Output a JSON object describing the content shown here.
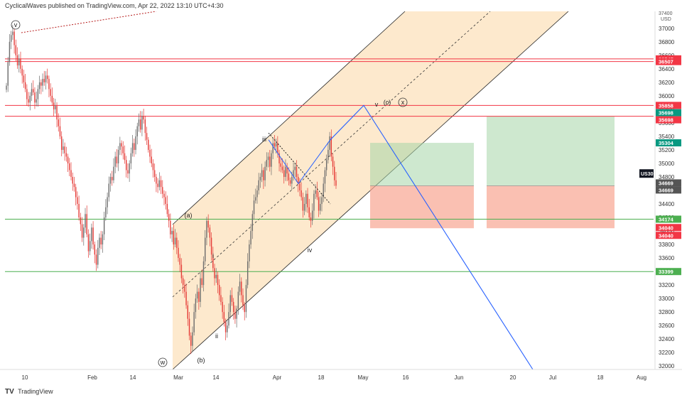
{
  "header": {
    "author": "CyclicalWaves",
    "published_text": "published on TradingView.com, Apr 22, 2022 13:10 UTC+4:30"
  },
  "footer": {
    "logo_text": "TV",
    "brand": "TradingView"
  },
  "chart_data": {
    "type": "candlestick",
    "symbol": "US30",
    "currency": "USD",
    "y_axis": {
      "range": [
        31950,
        37250
      ],
      "ticks": [
        32000,
        32200,
        32400,
        32600,
        32800,
        33000,
        33200,
        33400,
        33600,
        33800,
        34000,
        34200,
        34400,
        34600,
        34800,
        35000,
        35200,
        35400,
        35600,
        35800,
        36000,
        36200,
        36400,
        36600,
        36800,
        37000
      ],
      "top_partial_label": "37400"
    },
    "x_axis": {
      "labels": [
        "10",
        "Feb",
        "14",
        "Mar",
        "14",
        "Apr",
        "18",
        "May",
        "16",
        "Jun",
        "20",
        "Jul",
        "18",
        "Aug"
      ]
    },
    "candle_closes": [
      36150,
      36500,
      36800,
      36900,
      36950,
      36750,
      36600,
      36450,
      36550,
      36400,
      36300,
      36200,
      36100,
      35950,
      35900,
      36000,
      36100,
      36050,
      35900,
      35950,
      36100,
      36200,
      36150,
      36250,
      36200,
      36300,
      36250,
      36100,
      36000,
      35900,
      35800,
      35850,
      35650,
      35550,
      35400,
      35200,
      35250,
      35150,
      35100,
      35000,
      34900,
      34800,
      34700,
      34650,
      34500,
      34400,
      34200,
      34100,
      33900,
      34050,
      34250,
      33950,
      33700,
      33850,
      34050,
      33800,
      33650,
      33500,
      33750,
      33900,
      33800,
      33950,
      34200,
      34350,
      34500,
      34700,
      34800,
      34750,
      34950,
      35100,
      35000,
      35200,
      35300,
      35250,
      35150,
      35050,
      34900,
      34850,
      35000,
      35150,
      35300,
      35200,
      35400,
      35550,
      35650,
      35500,
      35700,
      35650,
      35450,
      35350,
      35200,
      35100,
      35000,
      34900,
      34800,
      34700,
      34650,
      34750,
      34650,
      34550,
      34500,
      34400,
      34250,
      34150,
      33950,
      34000,
      33800,
      33900,
      33750,
      33600,
      33500,
      33300,
      33200,
      33100,
      32900,
      32700,
      32450,
      32300,
      32500,
      32800,
      33000,
      33100,
      32950,
      33300,
      33200,
      33550,
      33900,
      34150,
      34050,
      33900,
      33650,
      33450,
      33300,
      33350,
      33200,
      33050,
      32950,
      32800,
      32650,
      32500,
      32600,
      32800,
      33050,
      32950,
      32800,
      32700,
      32850,
      33100,
      33250,
      33050,
      32900,
      32800,
      33200,
      33550,
      33800,
      34000,
      34250,
      34450,
      34500,
      34600,
      34750,
      34800,
      34900,
      34750,
      34950,
      35050,
      35100,
      34950,
      35150,
      35300,
      35250,
      35300,
      35150,
      35000,
      34950,
      34900,
      34800,
      34950,
      34850,
      34750,
      34700,
      34800,
      34900,
      34950,
      34800,
      34700,
      34600,
      34500,
      34300,
      34400,
      34550,
      34350,
      34200,
      34150,
      34300,
      34550,
      34600,
      34500,
      34300,
      34400,
      34500,
      34700,
      34900,
      35050,
      35200,
      35400,
      35100,
      34950,
      34750,
      34669
    ],
    "horizontal_levels": [
      {
        "price": 36547,
        "label": "36547",
        "color": "#f23645"
      },
      {
        "price": 36507,
        "label": "36507",
        "color": "#f23645"
      },
      {
        "price": 35858,
        "label": "35858",
        "color": "#f23645"
      },
      {
        "price": 35698,
        "label": "35698",
        "color": "#f23645"
      },
      {
        "price": 34174,
        "label": "34174",
        "color": "#4caf50"
      },
      {
        "price": 33399,
        "label": "33399",
        "color": "#4caf50"
      }
    ],
    "price_tags": [
      {
        "price": 36547,
        "label": "36547",
        "color": "#f23645"
      },
      {
        "price": 36507,
        "label": "36507",
        "color": "#f23645"
      },
      {
        "price": 35858,
        "label": "35858",
        "color": "#f23645"
      },
      {
        "price": 35698,
        "label": "35698",
        "color": "#089981"
      },
      {
        "price": 35698,
        "label": "35698",
        "color": "#f23645"
      },
      {
        "price": 35304,
        "label": "35304",
        "color": "#089981"
      },
      {
        "price": 34669,
        "label": "34669",
        "color": "#555555"
      },
      {
        "price": 34669,
        "label": "34669",
        "color": "#555555"
      },
      {
        "price": 34174,
        "label": "34174",
        "color": "#4caf50"
      },
      {
        "price": 34040,
        "label": "34040",
        "color": "#f23645"
      },
      {
        "price": 34040,
        "label": "34040",
        "color": "#f23645"
      },
      {
        "price": 33399,
        "label": "33399",
        "color": "#4caf50"
      }
    ],
    "symbol_tag": {
      "price": 34850,
      "label": "US30"
    },
    "wave_labels": [
      "v",
      "(a)",
      "(b)",
      "w",
      "i",
      "ii",
      "iii",
      "iv",
      "v",
      "(c)",
      "x"
    ],
    "colors": {
      "up_candle": "#6b6b6b",
      "down_candle": "#e53935",
      "channel_fill": "#fde5c4",
      "projection_line": "#2962ff",
      "target_zone": "#a5d6a7",
      "stop_zone": "#f8a592",
      "support_line": "#4caf50",
      "resistance_line": "#f23645"
    }
  }
}
